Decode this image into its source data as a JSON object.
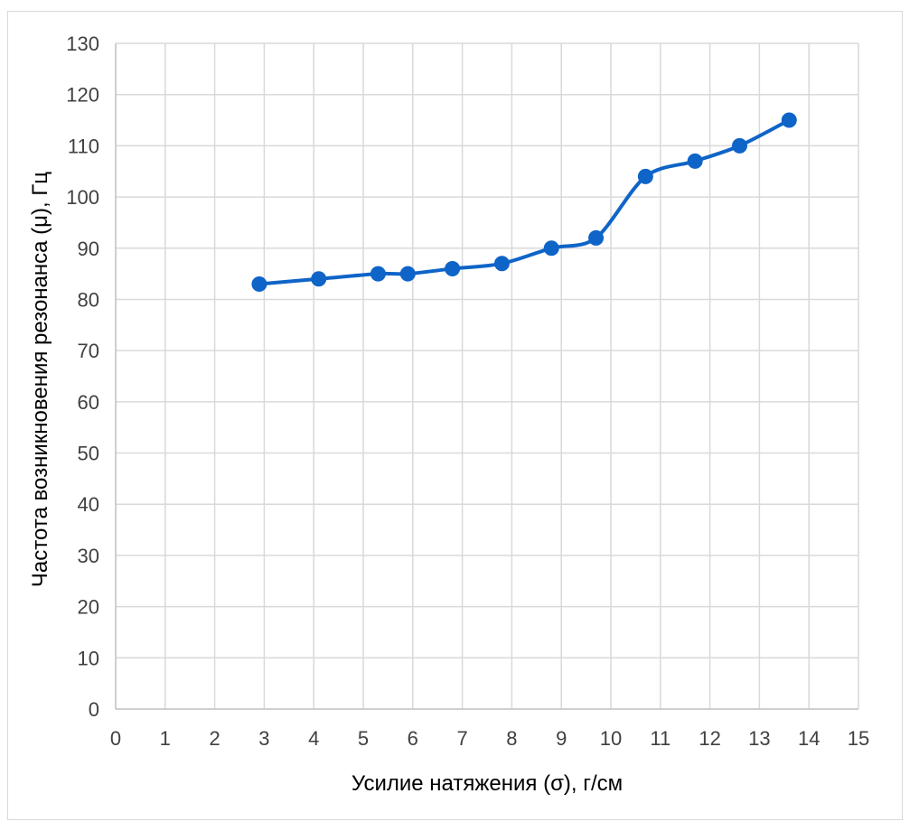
{
  "chart_data": {
    "type": "line",
    "title": "",
    "xlabel": "Усилие натяжения (σ), г/см",
    "ylabel": "Частота возникновения резонанса (μ), Гц",
    "xlim": [
      0,
      15
    ],
    "ylim": [
      0,
      130
    ],
    "x_ticks": [
      "0",
      "1",
      "2",
      "3",
      "4",
      "5",
      "6",
      "7",
      "8",
      "9",
      "10",
      "11",
      "12",
      "13",
      "14",
      "15"
    ],
    "y_ticks": [
      "0",
      "10",
      "20",
      "30",
      "40",
      "50",
      "60",
      "70",
      "80",
      "90",
      "100",
      "110",
      "120",
      "130"
    ],
    "grid": true,
    "legend": "none",
    "series": [
      {
        "x": [
          2.9,
          4.1,
          5.3,
          5.9,
          6.8,
          7.8,
          8.8,
          9.7,
          10.7,
          11.7,
          12.6,
          13.6
        ],
        "values": [
          83,
          84,
          85,
          85,
          86,
          87,
          90,
          92,
          104,
          107,
          110,
          115
        ],
        "color": "#0f64c8",
        "marker": "circle"
      }
    ]
  }
}
